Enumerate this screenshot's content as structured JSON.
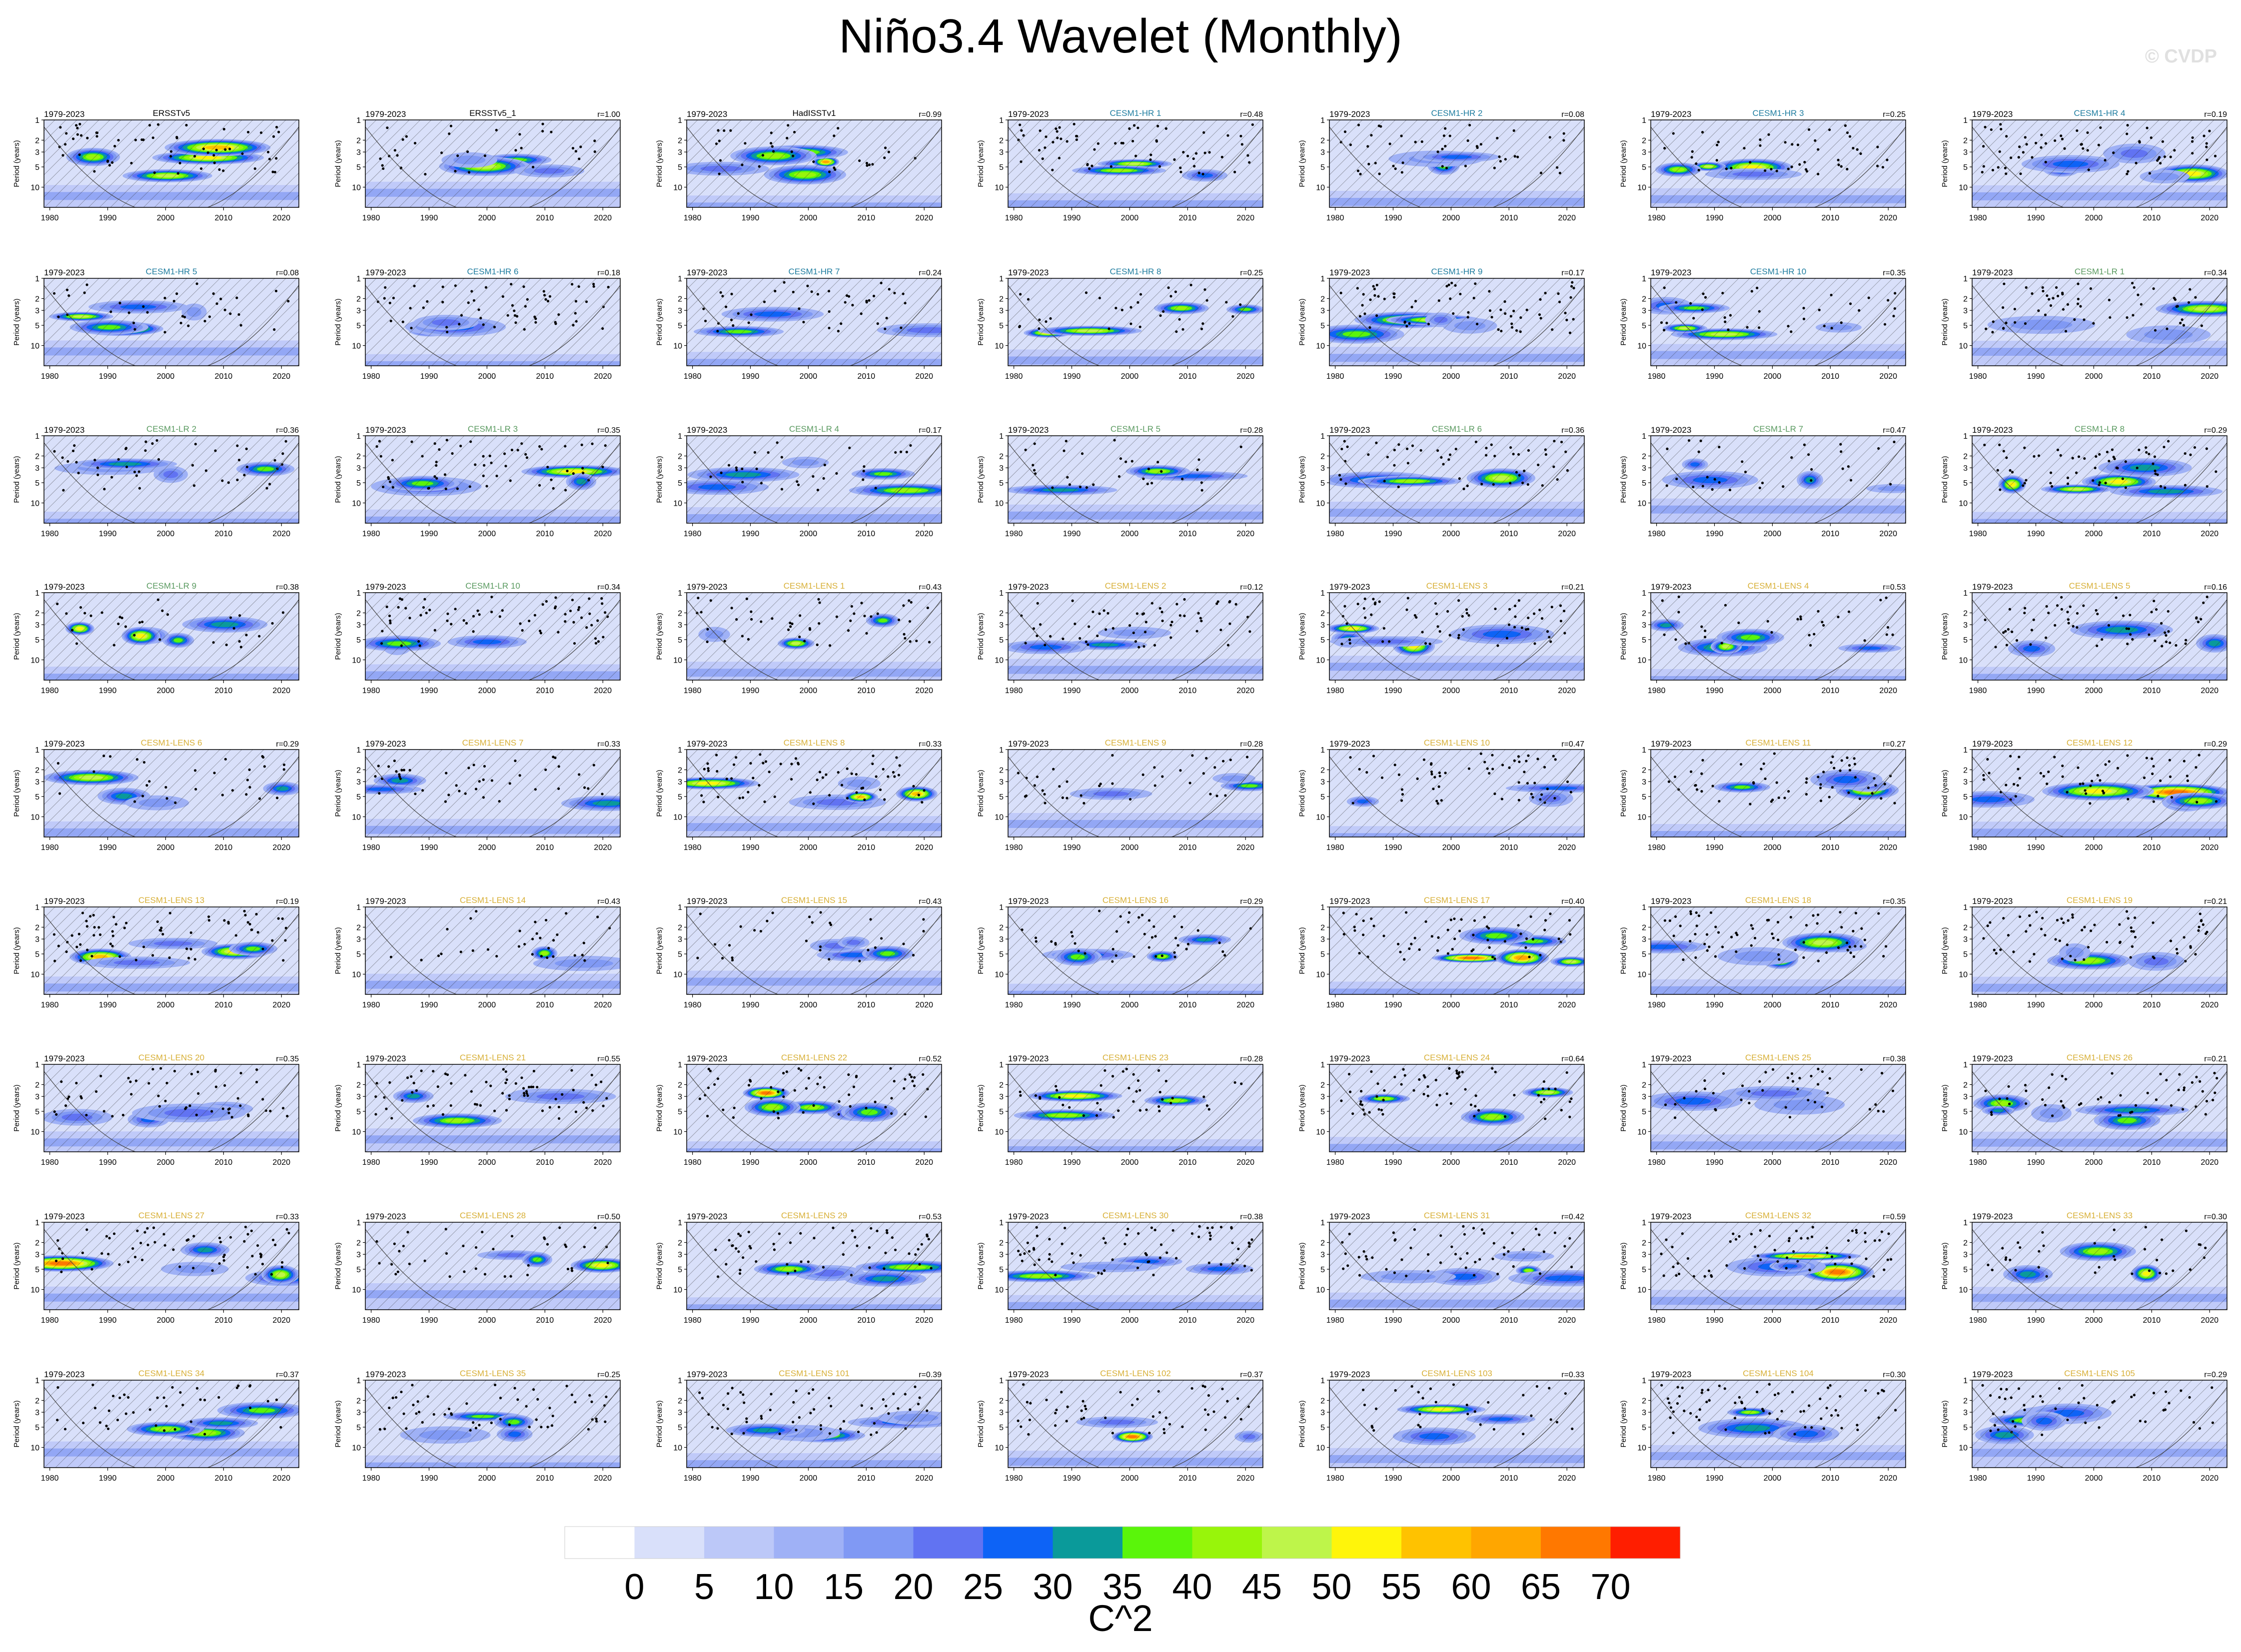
{
  "title": "Niño3.4 Wavelet (Monthly)",
  "copyright": "© CVDP",
  "colors": {
    "bar_bounds": [
      "#ffffff",
      "#d9e0fa",
      "#bcc8f8",
      "#9fb1f6",
      "#8099f4",
      "#6173f2",
      "#0d63f6",
      "#0a9a9a",
      "#5af50a",
      "#98f50a",
      "#bef54a",
      "#fff50a",
      "#ffc200",
      "#ffa600",
      "#ff7800",
      "#ff1e00"
    ],
    "obs_title": "#000000",
    "hr_title": "#207ea0",
    "lr_title": "#5a9a60",
    "lens_title": "#d8b038",
    "stipple": "#000000",
    "hatch": "#303030"
  },
  "colorbar": {
    "labels": [
      "0",
      "5",
      "10",
      "15",
      "20",
      "25",
      "30",
      "35",
      "40",
      "45",
      "50",
      "55",
      "60",
      "65",
      "70"
    ],
    "unit": "C^2"
  },
  "axes": {
    "y_label": "Period (years)",
    "y_ticks": [
      "1",
      "2",
      "3",
      "5",
      "10"
    ],
    "x_ticks": [
      "1980",
      "1990",
      "2000",
      "2010",
      "2020"
    ],
    "period_label": "1979-2023"
  },
  "chart_data": {
    "type": "heatmap",
    "variable": "Wavelet power",
    "unit": "C^2",
    "levels": [
      0,
      5,
      10,
      15,
      20,
      25,
      30,
      35,
      40,
      45,
      50,
      55,
      60,
      65,
      70
    ],
    "x_range": [
      1979,
      2023
    ],
    "y_range_period_years": [
      1,
      20
    ],
    "y_scale": "log",
    "panels": [
      {
        "name": "ERSSTv5",
        "group": "obs",
        "r": ""
      },
      {
        "name": "ERSSTv5_1",
        "group": "obs",
        "r": "r=1.00"
      },
      {
        "name": "HadISSTv1",
        "group": "obs",
        "r": "r=0.99"
      },
      {
        "name": "CESM1-HR 1",
        "group": "hr",
        "r": "r=0.48"
      },
      {
        "name": "CESM1-HR 2",
        "group": "hr",
        "r": "r=0.08"
      },
      {
        "name": "CESM1-HR 3",
        "group": "hr",
        "r": "r=0.25"
      },
      {
        "name": "CESM1-HR 4",
        "group": "hr",
        "r": "r=0.19"
      },
      {
        "name": "CESM1-HR 5",
        "group": "hr",
        "r": "r=0.08"
      },
      {
        "name": "CESM1-HR 6",
        "group": "hr",
        "r": "r=0.18"
      },
      {
        "name": "CESM1-HR 7",
        "group": "hr",
        "r": "r=0.24"
      },
      {
        "name": "CESM1-HR 8",
        "group": "hr",
        "r": "r=0.25"
      },
      {
        "name": "CESM1-HR 9",
        "group": "hr",
        "r": "r=0.17"
      },
      {
        "name": "CESM1-HR 10",
        "group": "hr",
        "r": "r=0.35"
      },
      {
        "name": "CESM1-LR 1",
        "group": "lr",
        "r": "r=0.34"
      },
      {
        "name": "CESM1-LR 2",
        "group": "lr",
        "r": "r=0.36"
      },
      {
        "name": "CESM1-LR 3",
        "group": "lr",
        "r": "r=0.35"
      },
      {
        "name": "CESM1-LR 4",
        "group": "lr",
        "r": "r=0.17"
      },
      {
        "name": "CESM1-LR 5",
        "group": "lr",
        "r": "r=0.28"
      },
      {
        "name": "CESM1-LR 6",
        "group": "lr",
        "r": "r=0.36"
      },
      {
        "name": "CESM1-LR 7",
        "group": "lr",
        "r": "r=0.47"
      },
      {
        "name": "CESM1-LR 8",
        "group": "lr",
        "r": "r=0.29"
      },
      {
        "name": "CESM1-LR 9",
        "group": "lr",
        "r": "r=0.38"
      },
      {
        "name": "CESM1-LR 10",
        "group": "lr",
        "r": "r=0.34"
      },
      {
        "name": "CESM1-LENS 1",
        "group": "lens",
        "r": "r=0.43"
      },
      {
        "name": "CESM1-LENS 2",
        "group": "lens",
        "r": "r=0.12"
      },
      {
        "name": "CESM1-LENS 3",
        "group": "lens",
        "r": "r=0.21"
      },
      {
        "name": "CESM1-LENS 4",
        "group": "lens",
        "r": "r=0.53"
      },
      {
        "name": "CESM1-LENS 5",
        "group": "lens",
        "r": "r=0.16"
      },
      {
        "name": "CESM1-LENS 6",
        "group": "lens",
        "r": "r=0.29"
      },
      {
        "name": "CESM1-LENS 7",
        "group": "lens",
        "r": "r=0.33"
      },
      {
        "name": "CESM1-LENS 8",
        "group": "lens",
        "r": "r=0.33"
      },
      {
        "name": "CESM1-LENS 9",
        "group": "lens",
        "r": "r=0.28"
      },
      {
        "name": "CESM1-LENS 10",
        "group": "lens",
        "r": "r=0.47"
      },
      {
        "name": "CESM1-LENS 11",
        "group": "lens",
        "r": "r=0.27"
      },
      {
        "name": "CESM1-LENS 12",
        "group": "lens",
        "r": "r=0.29"
      },
      {
        "name": "CESM1-LENS 13",
        "group": "lens",
        "r": "r=0.19"
      },
      {
        "name": "CESM1-LENS 14",
        "group": "lens",
        "r": "r=0.43"
      },
      {
        "name": "CESM1-LENS 15",
        "group": "lens",
        "r": "r=0.43"
      },
      {
        "name": "CESM1-LENS 16",
        "group": "lens",
        "r": "r=0.29"
      },
      {
        "name": "CESM1-LENS 17",
        "group": "lens",
        "r": "r=0.40"
      },
      {
        "name": "CESM1-LENS 18",
        "group": "lens",
        "r": "r=0.35"
      },
      {
        "name": "CESM1-LENS 19",
        "group": "lens",
        "r": "r=0.21"
      },
      {
        "name": "CESM1-LENS 20",
        "group": "lens",
        "r": "r=0.35"
      },
      {
        "name": "CESM1-LENS 21",
        "group": "lens",
        "r": "r=0.55"
      },
      {
        "name": "CESM1-LENS 22",
        "group": "lens",
        "r": "r=0.52"
      },
      {
        "name": "CESM1-LENS 23",
        "group": "lens",
        "r": "r=0.28"
      },
      {
        "name": "CESM1-LENS 24",
        "group": "lens",
        "r": "r=0.64"
      },
      {
        "name": "CESM1-LENS 25",
        "group": "lens",
        "r": "r=0.38"
      },
      {
        "name": "CESM1-LENS 26",
        "group": "lens",
        "r": "r=0.21"
      },
      {
        "name": "CESM1-LENS 27",
        "group": "lens",
        "r": "r=0.33"
      },
      {
        "name": "CESM1-LENS 28",
        "group": "lens",
        "r": "r=0.50"
      },
      {
        "name": "CESM1-LENS 29",
        "group": "lens",
        "r": "r=0.53"
      },
      {
        "name": "CESM1-LENS 30",
        "group": "lens",
        "r": "r=0.38"
      },
      {
        "name": "CESM1-LENS 31",
        "group": "lens",
        "r": "r=0.42"
      },
      {
        "name": "CESM1-LENS 32",
        "group": "lens",
        "r": "r=0.59"
      },
      {
        "name": "CESM1-LENS 33",
        "group": "lens",
        "r": "r=0.30"
      },
      {
        "name": "CESM1-LENS 34",
        "group": "lens",
        "r": "r=0.37"
      },
      {
        "name": "CESM1-LENS 35",
        "group": "lens",
        "r": "r=0.25"
      },
      {
        "name": "CESM1-LENS 101",
        "group": "lens",
        "r": "r=0.39"
      },
      {
        "name": "CESM1-LENS 102",
        "group": "lens",
        "r": "r=0.37"
      },
      {
        "name": "CESM1-LENS 103",
        "group": "lens",
        "r": "r=0.33"
      },
      {
        "name": "CESM1-LENS 104",
        "group": "lens",
        "r": "r=0.30"
      },
      {
        "name": "CESM1-LENS 105",
        "group": "lens",
        "r": "r=0.29"
      }
    ]
  }
}
